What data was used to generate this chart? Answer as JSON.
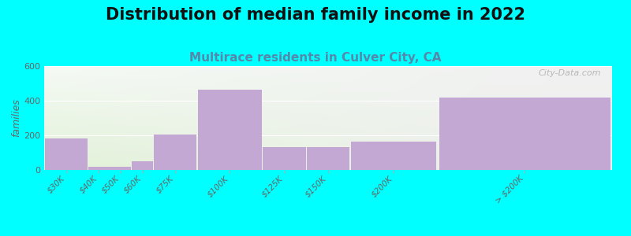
{
  "title": "Distribution of median family income in 2022",
  "subtitle": "Multirace residents in Culver City, CA",
  "ylabel": "families",
  "categories": [
    "$30K",
    "$40K",
    "$50K",
    "$60K",
    "$75K",
    "$100K",
    "$125K",
    "$150K",
    "$200K",
    "> $200K"
  ],
  "values": [
    183,
    18,
    18,
    48,
    205,
    463,
    133,
    133,
    163,
    418
  ],
  "bar_color": "#c4a8d4",
  "background_color": "#00ffff",
  "plot_bg_color_left": "#e2f2d8",
  "plot_bg_color_right": "#f0f0f0",
  "ylim": [
    0,
    600
  ],
  "yticks": [
    0,
    200,
    400,
    600
  ],
  "title_fontsize": 15,
  "subtitle_fontsize": 11,
  "ylabel_fontsize": 9,
  "watermark": "City-Data.com",
  "bar_edges": [
    0,
    10,
    15,
    20,
    25,
    35,
    50,
    60,
    70,
    90,
    130
  ],
  "tick_positions": [
    5,
    12.5,
    17.5,
    22.5,
    30,
    42.5,
    55,
    65,
    80,
    110
  ]
}
